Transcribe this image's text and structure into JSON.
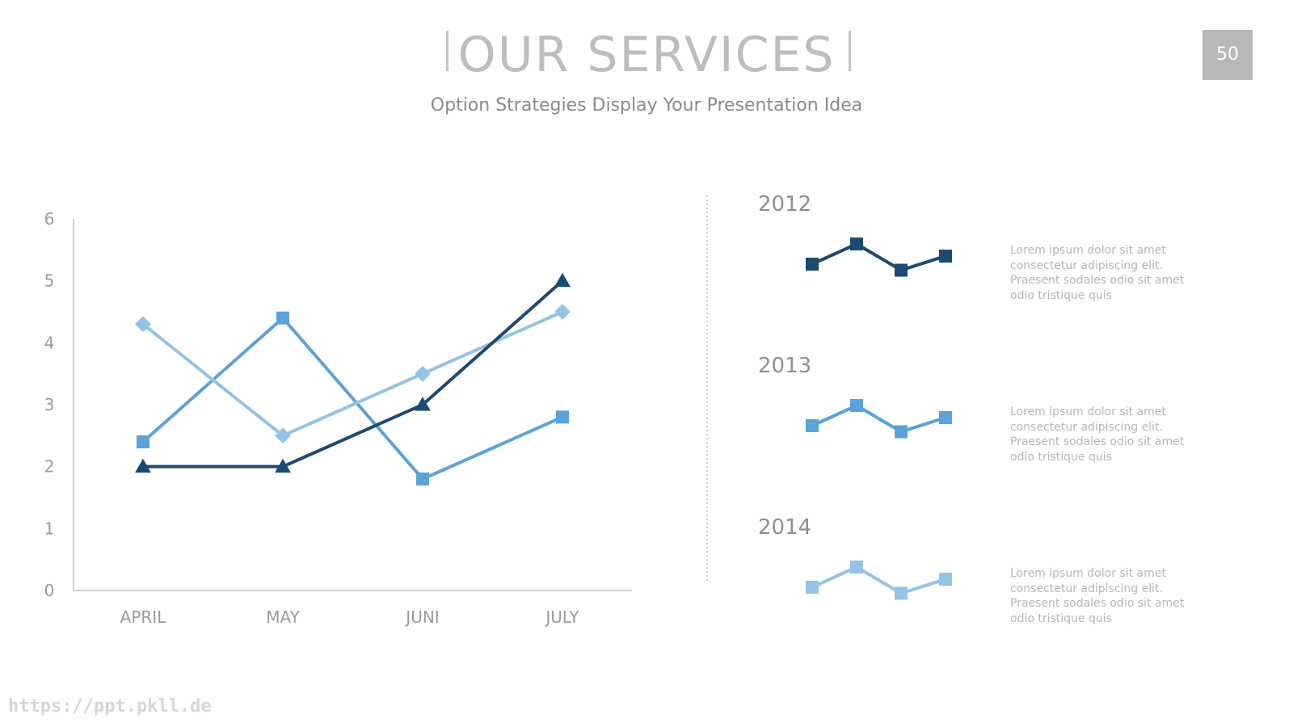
{
  "header": {
    "title": "OUR SERVICES",
    "subtitle": "Option Strategies Display Your Presentation Idea",
    "page_number": "50"
  },
  "colors": {
    "dark": "#1b4a72",
    "mid": "#5aa2d8",
    "light": "#93c3e6",
    "text_gray": "#8f8f8f"
  },
  "chart_data": [
    {
      "type": "line",
      "categories": [
        "APRIL",
        "MAY",
        "JUNI",
        "JULY"
      ],
      "ylim": [
        0,
        6
      ],
      "yticks": [
        0,
        1,
        2,
        3,
        4,
        5,
        6
      ],
      "grid": false,
      "series": [
        {
          "values": [
            2.4,
            4.4,
            1.8,
            2.8
          ],
          "color": "#5aa2d8",
          "marker": "square"
        },
        {
          "values": [
            4.3,
            2.5,
            3.5,
            4.5
          ],
          "color": "#93c3e6",
          "marker": "diamond"
        },
        {
          "values": [
            2.0,
            2.0,
            3.0,
            5.0
          ],
          "color": "#1b4a72",
          "marker": "triangle"
        }
      ]
    },
    {
      "type": "line",
      "title": "2012",
      "values": [
        4,
        6,
        3.4,
        4.8
      ],
      "color": "#1b4a72",
      "marker": "square"
    },
    {
      "type": "line",
      "title": "2013",
      "values": [
        4,
        6,
        3.4,
        4.8
      ],
      "color": "#5aa2d8",
      "marker": "square"
    },
    {
      "type": "line",
      "title": "2014",
      "values": [
        4,
        6,
        3.4,
        4.8
      ],
      "color": "#93c3e6",
      "marker": "square"
    }
  ],
  "descriptions": [
    [
      "Lorem ipsum dolor sit amet",
      "consectetur adipiscing elit.",
      "Praesent sodales odio sit amet",
      "odio tristique quis"
    ],
    [
      "Lorem ipsum dolor sit amet",
      "consectetur adipiscing elit.",
      "Praesent sodales odio sit amet",
      "odio tristique quis"
    ],
    [
      "Lorem ipsum dolor sit amet",
      "consectetur adipiscing elit.",
      "Praesent sodales odio sit amet",
      "odio tristique quis"
    ]
  ],
  "footer": {
    "url": "https://ppt.pkll.de"
  }
}
